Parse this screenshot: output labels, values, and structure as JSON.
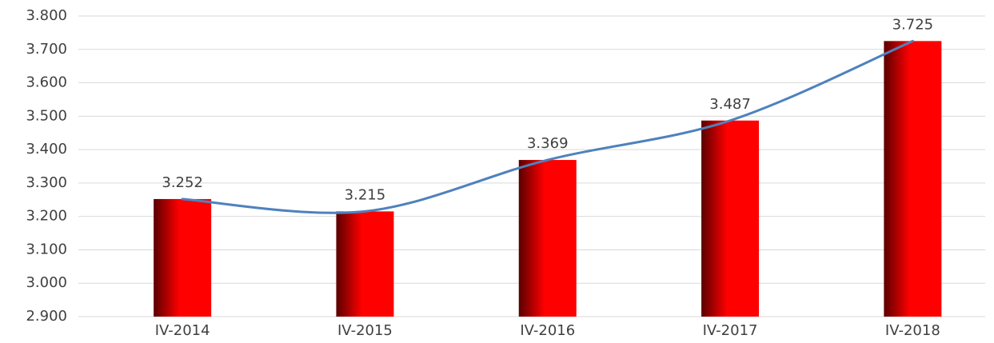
{
  "chart_data": {
    "type": "bar",
    "categories": [
      "IV-2014",
      "IV-2015",
      "IV-2016",
      "IV-2017",
      "IV-2018"
    ],
    "values": [
      3252,
      3215,
      3369,
      3487,
      3725
    ],
    "value_labels": [
      "3.252",
      "3.215",
      "3.369",
      "3.487",
      "3.725"
    ],
    "color": "#ff0000",
    "line_color": "#4f81bd",
    "ylim": [
      2900,
      3800
    ],
    "yticks": [
      {
        "value": 2900,
        "label": "2.900"
      },
      {
        "value": 3000,
        "label": "3.000"
      },
      {
        "value": 3100,
        "label": "3.100"
      },
      {
        "value": 3200,
        "label": "3.200"
      },
      {
        "value": 3300,
        "label": "3.300"
      },
      {
        "value": 3400,
        "label": "3.400"
      },
      {
        "value": 3500,
        "label": "3.500"
      },
      {
        "value": 3600,
        "label": "3.600"
      },
      {
        "value": 3700,
        "label": "3.700"
      },
      {
        "value": 3800,
        "label": "3.800"
      }
    ],
    "grid": true
  }
}
